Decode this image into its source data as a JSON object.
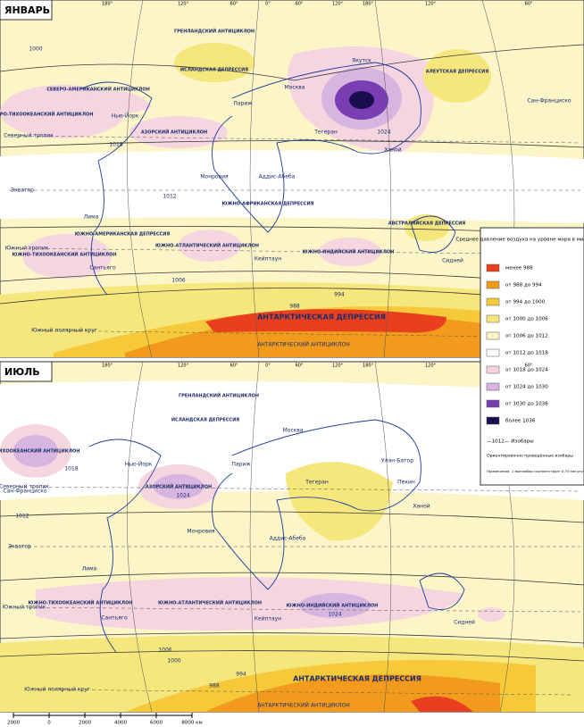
{
  "panels": [
    {
      "title": "ЯНВАРЬ",
      "labels": [
        "СЕВЕРО-АМЕРИКАНСКИЙ АНТИЦИКЛОН",
        "СЕВЕРО-ТИХООКЕАНСКИЙ АНТИЦИКЛОН",
        "ГРЕНЛАНДСКИЙ АНТИЦИКЛОН",
        "ИСЛАНДСКАЯ ДЕПРЕССИЯ",
        "АЛЕУТСКАЯ ДЕПРЕССИЯ",
        "АЗОРСКИЙ АНТИЦИКЛОН",
        "ЮЖНО-АФРИКАНСКАЯ ДЕПРЕССИЯ",
        "ЮЖНО-АМЕРИКАНСКАЯ ДЕПРЕССИЯ",
        "ЮЖНО-АТЛАНТИЧЕСКИЙ АНТИЦИКЛОН",
        "ЮЖНО-ТИХООКЕАНСКИЙ АНТИЦИКЛОН",
        "ЮЖНО-ИНДИЙСКИЙ АНТИЦИКЛОН",
        "АВСТРАЛИЙСКАЯ ДЕПРЕССИЯ",
        "АНТАРКТИЧЕСКАЯ ДЕПРЕССИЯ",
        "АНТАРКТИЧЕСКИЙ АНТИЦИКЛОН",
        "Москва",
        "Париж",
        "Нью-Йорк",
        "Якутск",
        "Тегеран",
        "Сан-Франциско",
        "Монровия",
        "Аддис-Абеба",
        "Кейптаун",
        "Сантьяго",
        "Сидней",
        "Лима",
        "Ханой",
        "Северный тропик",
        "Экватор",
        "Южный тропик",
        "Южный полярный круг",
        "1012",
        "1018",
        "1000",
        "1024",
        "994",
        "988",
        "1006"
      ]
    },
    {
      "title": "ИЮЛЬ",
      "labels": [
        "СЕВЕРО-ТИХООКЕАНСКИЙ АНТИЦИКЛОН",
        "ГРЕНЛАНДСКИЙ АНТИЦИКЛОН",
        "ИСЛАНДСКАЯ ДЕПРЕССИЯ",
        "АЗОРСКИЙ АНТИЦИКЛОН",
        "ЮЖНО-ТИХООКЕАНСКИЙ АНТИЦИКЛОН",
        "ЮЖНО-АТЛАНТИЧЕСКИЙ АНТИЦИКЛОН",
        "ЮЖНО-ИНДИЙСКИЙ АНТИЦИКЛОН",
        "АНТАРКТИЧЕСКАЯ ДЕПРЕССИЯ",
        "АНТАРКТИЧЕСКИЙ АНТИЦИКЛОН",
        "Москва",
        "Париж",
        "Нью-Йорк",
        "Тегеран",
        "Улан-Батор",
        "Пекин",
        "Ханой",
        "Монровия",
        "Аддис-Абеба",
        "Кейптаун",
        "Сантьяго",
        "Сидней",
        "Сан-Франциско",
        "Лима",
        "Северный тропик",
        "Экватор",
        "Южный тропик",
        "Южный полярный круг",
        "1012",
        "1018",
        "1024",
        "1024",
        "1006",
        "1000",
        "994",
        "988"
      ]
    }
  ],
  "longitudes": [
    "180°",
    "120°",
    "60°",
    "0°",
    "60°",
    "120°",
    "180°",
    "120°",
    "60°"
  ],
  "legend": {
    "title": "Среднее давление воздуха на уровне моря в миллибарах",
    "items": [
      {
        "label": "менее 988",
        "color": "#e8401e"
      },
      {
        "label": "от 988 до 994",
        "color": "#f29a1c"
      },
      {
        "label": "от 994 до 1000",
        "color": "#f5c93a"
      },
      {
        "label": "от 1000 до 1006",
        "color": "#f5e77c"
      },
      {
        "label": "от 1006 до 1012",
        "color": "#fbf5c8"
      },
      {
        "label": "от 1012 до 1018",
        "color": "#ffffff"
      },
      {
        "label": "от 1018 до 1024",
        "color": "#f5d5e0"
      },
      {
        "label": "от 1024 до 1030",
        "color": "#d6b6e0"
      },
      {
        "label": "от 1030 до 1036",
        "color": "#7a3eb3"
      },
      {
        "label": "более 1036",
        "color": "#1a0d4d"
      }
    ],
    "isobars": "—1012— Изобары",
    "approx": "Ориентировочно проведённые изобары",
    "note": "Примечание. 1 миллибар соответствует 0,75 мм ртутного столба"
  },
  "scale": [
    "2000",
    "0",
    "2000",
    "4000",
    "6000",
    "8000 км"
  ]
}
